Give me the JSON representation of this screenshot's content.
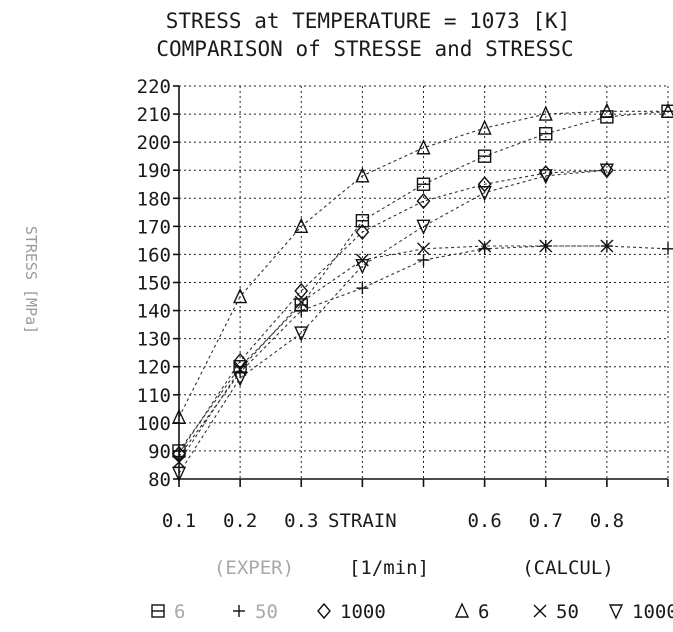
{
  "chart_data": {
    "type": "line",
    "title": "STRESS at TEMPERATURE = 1073 [K]",
    "subtitle": "COMPARISON of STRESSE and STRESSC",
    "xlabel": "STRAIN",
    "ylabel": "STRESS [MPa]",
    "xlim": [
      0.1,
      0.9
    ],
    "ylim": [
      80,
      220
    ],
    "x_ticks": [
      0.1,
      0.2,
      0.3,
      0.4,
      0.5,
      0.6,
      0.7,
      0.8,
      0.9
    ],
    "x_tick_labels": [
      "0.1",
      "0.2",
      "0.3",
      "STRAIN",
      "",
      "0.6",
      "0.7",
      "0.8",
      ""
    ],
    "y_ticks": [
      80,
      90,
      100,
      110,
      120,
      130,
      140,
      150,
      160,
      170,
      180,
      190,
      200,
      210,
      220
    ],
    "y_tick_labels": [
      "80",
      "90",
      "100",
      "110",
      "120",
      "130",
      "140",
      "150",
      "160",
      "170",
      "180",
      "190",
      "200",
      "210",
      "220"
    ],
    "grid": true,
    "series": [
      {
        "marker": "square",
        "x": [
          0.1,
          0.2,
          0.3,
          0.4,
          0.5,
          0.6,
          0.7,
          0.8,
          0.9
        ],
        "values": [
          90,
          120,
          142,
          172,
          185,
          195,
          203,
          209,
          211
        ]
      },
      {
        "marker": "plus",
        "x": [
          0.1,
          0.2,
          0.3,
          0.4,
          0.5,
          0.6,
          0.7,
          0.8,
          0.9
        ],
        "values": [
          88,
          118,
          140,
          148,
          158,
          162,
          163,
          163,
          162
        ]
      },
      {
        "marker": "diamond",
        "x": [
          0.1,
          0.2,
          0.3,
          0.4,
          0.5,
          0.6,
          0.7,
          0.8
        ],
        "values": [
          89,
          122,
          147,
          168,
          179,
          185,
          189,
          190
        ]
      },
      {
        "marker": "triangle",
        "x": [
          0.1,
          0.2,
          0.3,
          0.4,
          0.5,
          0.6,
          0.7,
          0.8,
          0.9
        ],
        "values": [
          102,
          145,
          170,
          188,
          198,
          205,
          210,
          211,
          211
        ]
      },
      {
        "marker": "cross",
        "x": [
          0.1,
          0.2,
          0.3,
          0.4,
          0.5,
          0.6,
          0.7,
          0.8
        ],
        "values": [
          86,
          119,
          143,
          158,
          162,
          163,
          163,
          163
        ]
      },
      {
        "marker": "nabla",
        "x": [
          0.1,
          0.2,
          0.3,
          0.4,
          0.5,
          0.6,
          0.7,
          0.8
        ],
        "values": [
          82,
          116,
          132,
          156,
          170,
          182,
          188,
          190
        ]
      }
    ],
    "legend": {
      "placement": "bottom",
      "header_left": "(EXPER)",
      "header_mid": "[1/min]",
      "header_right": "(CALCUL)",
      "entries": [
        {
          "marker": "square",
          "text": "6"
        },
        {
          "marker": "plus",
          "text": "50"
        },
        {
          "marker": "diamond",
          "text": "1000"
        },
        {
          "marker": "triangle",
          "text": "6"
        },
        {
          "marker": "cross",
          "text": "50"
        },
        {
          "marker": "nabla",
          "text": "1000"
        }
      ]
    }
  }
}
